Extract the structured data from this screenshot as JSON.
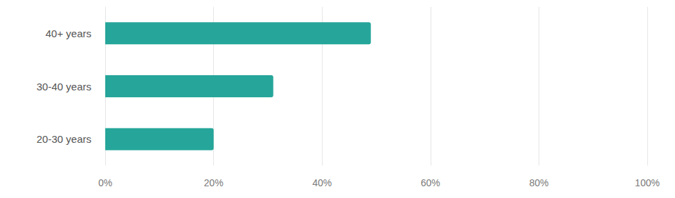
{
  "chart_data": {
    "type": "bar",
    "orientation": "horizontal",
    "categories": [
      "40+ years",
      "30-40 years",
      "20-30 years"
    ],
    "values": [
      49,
      31,
      20
    ],
    "color": "#26a69a",
    "xlim": [
      0,
      100
    ],
    "xticks": [
      {
        "value": 0,
        "label": "0%"
      },
      {
        "value": 20,
        "label": "20%"
      },
      {
        "value": 40,
        "label": "40%"
      },
      {
        "value": 60,
        "label": "60%"
      },
      {
        "value": 80,
        "label": "80%"
      },
      {
        "value": 100,
        "label": "100%"
      }
    ],
    "grid": true
  }
}
